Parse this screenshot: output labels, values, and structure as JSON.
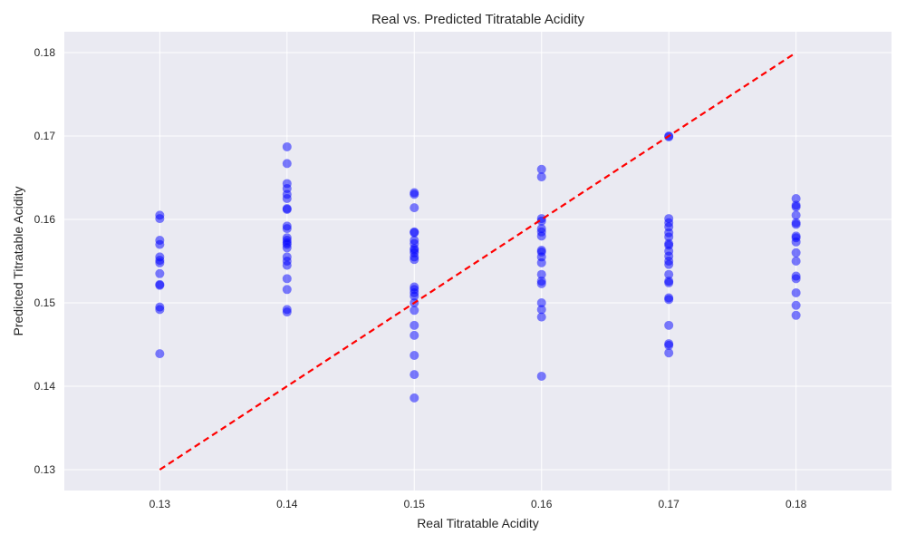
{
  "chart_data": {
    "type": "scatter",
    "title": "Real vs. Predicted Titratable Acidity",
    "xlabel": "Real Titratable Acidity",
    "ylabel": "Predicted Titratable Acidity",
    "xlim": [
      0.1225,
      0.1875
    ],
    "ylim": [
      0.1275,
      0.1825
    ],
    "xticks": [
      0.13,
      0.14,
      0.15,
      0.16,
      0.17,
      0.18
    ],
    "yticks": [
      0.13,
      0.14,
      0.15,
      0.16,
      0.17,
      0.18
    ],
    "tick_labels_x": [
      "0.13",
      "0.14",
      "0.15",
      "0.16",
      "0.17",
      "0.18"
    ],
    "tick_labels_y": [
      "0.13",
      "0.14",
      "0.15",
      "0.16",
      "0.17",
      "0.18"
    ],
    "grid": true,
    "background": "#eaeaf2",
    "point_color": "#0000ff",
    "point_opacity": 0.5,
    "reference_line": {
      "from": [
        0.13,
        0.13
      ],
      "to": [
        0.18,
        0.18
      ],
      "color": "#ff0000",
      "style": "dashed"
    },
    "points": [
      [
        0.13,
        0.1605
      ],
      [
        0.13,
        0.1601
      ],
      [
        0.13,
        0.1575
      ],
      [
        0.13,
        0.157
      ],
      [
        0.13,
        0.1555
      ],
      [
        0.13,
        0.1551
      ],
      [
        0.13,
        0.1548
      ],
      [
        0.13,
        0.1535
      ],
      [
        0.13,
        0.1522
      ],
      [
        0.13,
        0.1521
      ],
      [
        0.13,
        0.1495
      ],
      [
        0.13,
        0.1492
      ],
      [
        0.13,
        0.1439
      ],
      [
        0.14,
        0.1687
      ],
      [
        0.14,
        0.1667
      ],
      [
        0.14,
        0.1643
      ],
      [
        0.14,
        0.1637
      ],
      [
        0.14,
        0.163
      ],
      [
        0.14,
        0.1625
      ],
      [
        0.14,
        0.1613
      ],
      [
        0.14,
        0.1612
      ],
      [
        0.14,
        0.1592
      ],
      [
        0.14,
        0.1589
      ],
      [
        0.14,
        0.1578
      ],
      [
        0.14,
        0.1575
      ],
      [
        0.14,
        0.1572
      ],
      [
        0.14,
        0.157
      ],
      [
        0.14,
        0.1566
      ],
      [
        0.14,
        0.1555
      ],
      [
        0.14,
        0.155
      ],
      [
        0.14,
        0.1545
      ],
      [
        0.14,
        0.1529
      ],
      [
        0.14,
        0.1516
      ],
      [
        0.14,
        0.1492
      ],
      [
        0.14,
        0.1489
      ],
      [
        0.15,
        0.1632
      ],
      [
        0.15,
        0.163
      ],
      [
        0.15,
        0.1614
      ],
      [
        0.15,
        0.1585
      ],
      [
        0.15,
        0.1584
      ],
      [
        0.15,
        0.1575
      ],
      [
        0.15,
        0.1571
      ],
      [
        0.15,
        0.1565
      ],
      [
        0.15,
        0.1563
      ],
      [
        0.15,
        0.156
      ],
      [
        0.15,
        0.1555
      ],
      [
        0.15,
        0.1552
      ],
      [
        0.15,
        0.1519
      ],
      [
        0.15,
        0.1516
      ],
      [
        0.15,
        0.1512
      ],
      [
        0.15,
        0.1508
      ],
      [
        0.15,
        0.15
      ],
      [
        0.15,
        0.1491
      ],
      [
        0.15,
        0.1473
      ],
      [
        0.15,
        0.1461
      ],
      [
        0.15,
        0.1437
      ],
      [
        0.15,
        0.1414
      ],
      [
        0.15,
        0.1386
      ],
      [
        0.16,
        0.166
      ],
      [
        0.16,
        0.1651
      ],
      [
        0.16,
        0.1601
      ],
      [
        0.16,
        0.1598
      ],
      [
        0.16,
        0.1589
      ],
      [
        0.16,
        0.1585
      ],
      [
        0.16,
        0.158
      ],
      [
        0.16,
        0.1563
      ],
      [
        0.16,
        0.1561
      ],
      [
        0.16,
        0.1555
      ],
      [
        0.16,
        0.1548
      ],
      [
        0.16,
        0.1534
      ],
      [
        0.16,
        0.1526
      ],
      [
        0.16,
        0.1523
      ],
      [
        0.16,
        0.15
      ],
      [
        0.16,
        0.1492
      ],
      [
        0.16,
        0.1483
      ],
      [
        0.16,
        0.1412
      ],
      [
        0.17,
        0.17
      ],
      [
        0.17,
        0.1699
      ],
      [
        0.17,
        0.1601
      ],
      [
        0.17,
        0.1596
      ],
      [
        0.17,
        0.1591
      ],
      [
        0.17,
        0.1584
      ],
      [
        0.17,
        0.1579
      ],
      [
        0.17,
        0.1571
      ],
      [
        0.17,
        0.1569
      ],
      [
        0.17,
        0.1562
      ],
      [
        0.17,
        0.1556
      ],
      [
        0.17,
        0.155
      ],
      [
        0.17,
        0.1546
      ],
      [
        0.17,
        0.1534
      ],
      [
        0.17,
        0.1526
      ],
      [
        0.17,
        0.1524
      ],
      [
        0.17,
        0.1506
      ],
      [
        0.17,
        0.1504
      ],
      [
        0.17,
        0.1473
      ],
      [
        0.17,
        0.1451
      ],
      [
        0.17,
        0.1449
      ],
      [
        0.17,
        0.144
      ],
      [
        0.18,
        0.1625
      ],
      [
        0.18,
        0.1617
      ],
      [
        0.18,
        0.1615
      ],
      [
        0.18,
        0.1605
      ],
      [
        0.18,
        0.1596
      ],
      [
        0.18,
        0.1594
      ],
      [
        0.18,
        0.158
      ],
      [
        0.18,
        0.1578
      ],
      [
        0.18,
        0.1573
      ],
      [
        0.18,
        0.156
      ],
      [
        0.18,
        0.155
      ],
      [
        0.18,
        0.1532
      ],
      [
        0.18,
        0.1529
      ],
      [
        0.18,
        0.1512
      ],
      [
        0.18,
        0.1497
      ],
      [
        0.18,
        0.1485
      ]
    ]
  }
}
